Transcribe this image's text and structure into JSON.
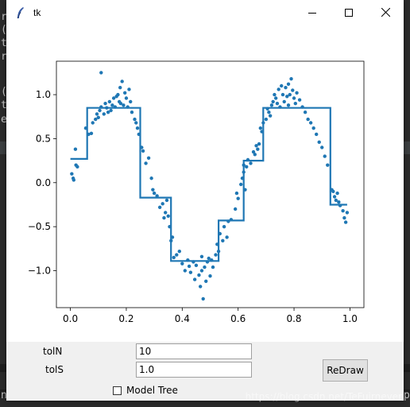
{
  "window": {
    "title": "tk"
  },
  "background_text": [
    "r",
    "(",
    "t",
    "r",
    "(",
    "t",
    "e",
    "n",
    "p"
  ],
  "chart_data": {
    "type": "scatter+step",
    "title": "",
    "xlabel": "",
    "ylabel": "",
    "xlim": [
      -0.05,
      1.05
    ],
    "ylim": [
      -1.42,
      1.38
    ],
    "xticks": [
      "0.0",
      "0.2",
      "0.4",
      "0.6",
      "0.8",
      "1.0"
    ],
    "yticks": [
      "−1.0",
      "−0.5",
      "0.0",
      "0.5",
      "1.0"
    ],
    "color": "#1f77b4",
    "scatter": [
      [
        0.005,
        0.1
      ],
      [
        0.01,
        0.05
      ],
      [
        0.012,
        0.03
      ],
      [
        0.018,
        0.38
      ],
      [
        0.02,
        0.2
      ],
      [
        0.025,
        0.18
      ],
      [
        0.055,
        0.62
      ],
      [
        0.065,
        0.55
      ],
      [
        0.075,
        0.56
      ],
      [
        0.08,
        0.68
      ],
      [
        0.09,
        0.72
      ],
      [
        0.095,
        0.78
      ],
      [
        0.1,
        0.74
      ],
      [
        0.105,
        0.82
      ],
      [
        0.11,
        0.86
      ],
      [
        0.12,
        0.78
      ],
      [
        0.125,
        0.9
      ],
      [
        0.13,
        0.85
      ],
      [
        0.135,
        0.8
      ],
      [
        0.14,
        0.92
      ],
      [
        0.145,
        0.82
      ],
      [
        0.15,
        0.88
      ],
      [
        0.155,
        0.96
      ],
      [
        0.16,
        0.86
      ],
      [
        0.165,
        0.98
      ],
      [
        0.17,
        1.0
      ],
      [
        0.175,
        0.92
      ],
      [
        0.178,
        1.08
      ],
      [
        0.18,
        0.9
      ],
      [
        0.185,
        1.15
      ],
      [
        0.19,
        0.88
      ],
      [
        0.195,
        1.02
      ],
      [
        0.2,
        0.96
      ],
      [
        0.205,
        0.86
      ],
      [
        0.21,
        1.06
      ],
      [
        0.215,
        0.92
      ],
      [
        0.22,
        0.8
      ],
      [
        0.23,
        0.72
      ],
      [
        0.235,
        0.68
      ],
      [
        0.24,
        0.62
      ],
      [
        0.245,
        0.55
      ],
      [
        0.11,
        1.25
      ],
      [
        0.255,
        0.4
      ],
      [
        0.26,
        0.36
      ],
      [
        0.27,
        0.22
      ],
      [
        0.28,
        0.28
      ],
      [
        0.29,
        0.05
      ],
      [
        0.295,
        -0.08
      ],
      [
        0.3,
        -0.12
      ],
      [
        0.31,
        -0.15
      ],
      [
        0.32,
        -0.28
      ],
      [
        0.33,
        -0.24
      ],
      [
        0.335,
        -0.4
      ],
      [
        0.34,
        -0.34
      ],
      [
        0.345,
        -0.2
      ],
      [
        0.35,
        -0.38
      ],
      [
        0.355,
        -0.5
      ],
      [
        0.36,
        -0.66
      ],
      [
        0.365,
        -0.62
      ],
      [
        0.37,
        -0.85
      ],
      [
        0.38,
        -0.82
      ],
      [
        0.39,
        -0.78
      ],
      [
        0.4,
        -0.92
      ],
      [
        0.41,
        -1.0
      ],
      [
        0.42,
        -0.88
      ],
      [
        0.425,
        -0.95
      ],
      [
        0.43,
        -1.02
      ],
      [
        0.44,
        -0.9
      ],
      [
        0.445,
        -1.1
      ],
      [
        0.45,
        -0.94
      ],
      [
        0.46,
        -1.05
      ],
      [
        0.465,
        -1.18
      ],
      [
        0.47,
        -1.0
      ],
      [
        0.475,
        -1.32
      ],
      [
        0.48,
        -0.96
      ],
      [
        0.485,
        -1.12
      ],
      [
        0.49,
        -0.9
      ],
      [
        0.495,
        -0.86
      ],
      [
        0.5,
        -1.06
      ],
      [
        0.505,
        -0.88
      ],
      [
        0.51,
        -0.96
      ],
      [
        0.52,
        -0.82
      ],
      [
        0.525,
        -0.7
      ],
      [
        0.535,
        -0.58
      ],
      [
        0.545,
        -0.66
      ],
      [
        0.55,
        -0.5
      ],
      [
        0.56,
        -0.62
      ],
      [
        0.565,
        -0.44
      ],
      [
        0.575,
        -0.42
      ],
      [
        0.59,
        -0.3
      ],
      [
        0.595,
        -0.12
      ],
      [
        0.6,
        -0.18
      ],
      [
        0.61,
        -0.02
      ],
      [
        0.615,
        0.05
      ],
      [
        0.62,
        0.12
      ],
      [
        0.625,
        -0.08
      ],
      [
        0.63,
        0.18
      ],
      [
        0.635,
        0.26
      ],
      [
        0.645,
        0.22
      ],
      [
        0.655,
        0.35
      ],
      [
        0.66,
        0.32
      ],
      [
        0.665,
        0.42
      ],
      [
        0.67,
        0.38
      ],
      [
        0.675,
        0.44
      ],
      [
        0.68,
        0.62
      ],
      [
        0.685,
        0.58
      ],
      [
        0.69,
        0.68
      ],
      [
        0.7,
        0.72
      ],
      [
        0.705,
        0.84
      ],
      [
        0.71,
        0.8
      ],
      [
        0.715,
        0.76
      ],
      [
        0.72,
        0.88
      ],
      [
        0.725,
        0.92
      ],
      [
        0.73,
        1.0
      ],
      [
        0.735,
        0.96
      ],
      [
        0.74,
        0.9
      ],
      [
        0.745,
        1.06
      ],
      [
        0.75,
        0.86
      ],
      [
        0.755,
        1.1
      ],
      [
        0.76,
        1.0
      ],
      [
        0.765,
        0.92
      ],
      [
        0.77,
        1.08
      ],
      [
        0.775,
        0.98
      ],
      [
        0.78,
        1.12
      ],
      [
        0.785,
        1.0
      ],
      [
        0.79,
        1.18
      ],
      [
        0.795,
        1.05
      ],
      [
        0.8,
        0.96
      ],
      [
        0.805,
        0.9
      ],
      [
        0.81,
        1.02
      ],
      [
        0.82,
        0.94
      ],
      [
        0.83,
        0.86
      ],
      [
        0.84,
        0.8
      ],
      [
        0.85,
        0.72
      ],
      [
        0.86,
        0.68
      ],
      [
        0.87,
        0.62
      ],
      [
        0.88,
        0.55
      ],
      [
        0.89,
        0.46
      ],
      [
        0.9,
        0.4
      ],
      [
        0.91,
        0.3
      ],
      [
        0.92,
        0.2
      ],
      [
        0.935,
        -0.08
      ],
      [
        0.94,
        -0.1
      ],
      [
        0.945,
        -0.16
      ],
      [
        0.95,
        -0.2
      ],
      [
        0.955,
        -0.12
      ],
      [
        0.96,
        -0.22
      ],
      [
        0.965,
        -0.26
      ],
      [
        0.975,
        -0.32
      ],
      [
        0.98,
        -0.4
      ],
      [
        0.985,
        -0.45
      ],
      [
        0.99,
        -0.34
      ],
      [
        0.78,
        0.88
      ],
      [
        0.53,
        -0.78
      ],
      [
        0.47,
        -0.84
      ],
      [
        0.62,
        0.2
      ]
    ],
    "step_line": [
      [
        0.0,
        0.27
      ],
      [
        0.06,
        0.27
      ],
      [
        0.06,
        0.85
      ],
      [
        0.25,
        0.85
      ],
      [
        0.25,
        -0.17
      ],
      [
        0.36,
        -0.17
      ],
      [
        0.36,
        -0.89
      ],
      [
        0.53,
        -0.89
      ],
      [
        0.53,
        -0.43
      ],
      [
        0.62,
        -0.43
      ],
      [
        0.62,
        0.25
      ],
      [
        0.69,
        0.25
      ],
      [
        0.69,
        0.85
      ],
      [
        0.93,
        0.85
      ],
      [
        0.93,
        -0.25
      ],
      [
        0.99,
        -0.25
      ]
    ]
  },
  "controls": {
    "tolN_label": "tolN",
    "tolN_value": "10",
    "tolS_label": "tolS",
    "tolS_value": "1.0",
    "redraw_label": "ReDraw",
    "model_tree_label": "Model Tree",
    "model_tree_checked": false
  },
  "watermark": "https://blog.csdn.net/TeFuirnever"
}
